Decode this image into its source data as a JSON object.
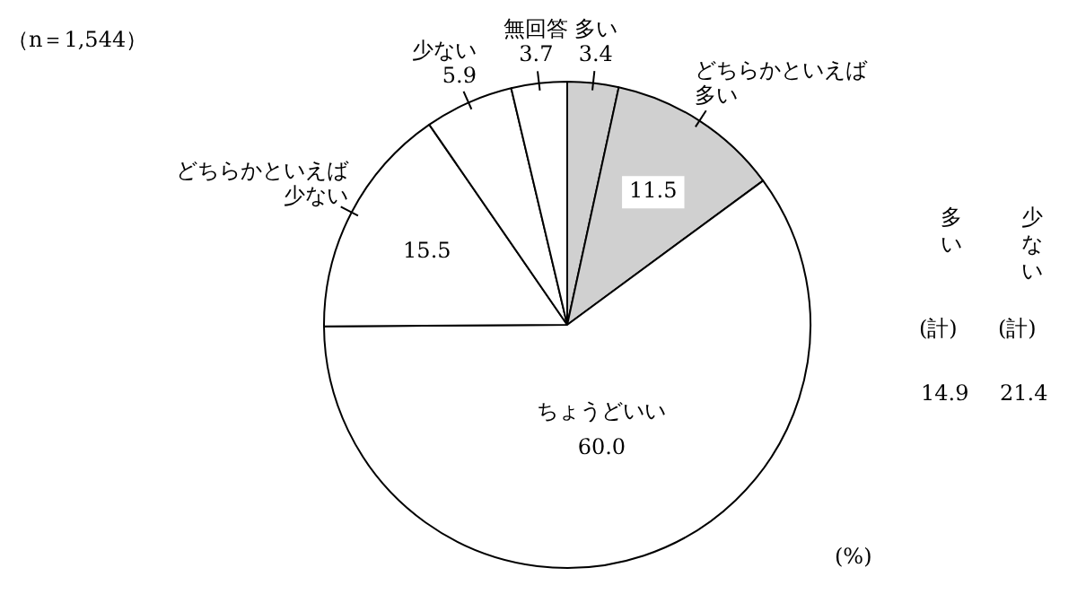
{
  "chart_data": {
    "type": "pie",
    "categories": [
      "多い",
      "どちらかといえば多い",
      "ちょうどいい",
      "どちらかといえば少ない",
      "少ない",
      "無回答"
    ],
    "values": [
      3.4,
      11.5,
      60.0,
      15.5,
      5.9,
      3.7
    ],
    "value_labels": [
      "3.4",
      "11.5",
      "60.0",
      "15.5",
      "5.9",
      "3.7"
    ],
    "colors": [
      "#d0d0d0",
      "#d0d0d0",
      "#ffffff",
      "#ffffff",
      "#ffffff",
      "#ffffff"
    ],
    "legend": false,
    "annotations": [
      "（n＝1,544）",
      "(%)",
      "多い",
      "少ない",
      "(計)",
      "(計)",
      "14.9",
      "21.4"
    ]
  }
}
